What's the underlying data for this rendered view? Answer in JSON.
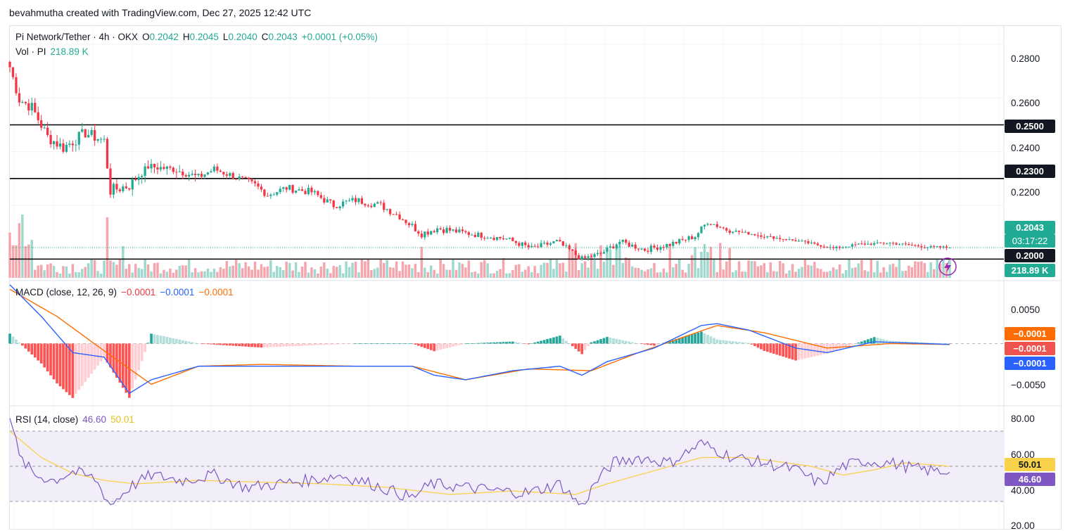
{
  "header": {
    "credit": "bevahmutha created with TradingView.com, Dec 27, 2025 12:42 UTC"
  },
  "legend": {
    "symbol": "Pi Network/Tether · 4h · OKX",
    "o_label": "O",
    "o_value": "0.2042",
    "h_label": "H",
    "h_value": "0.2045",
    "l_label": "L",
    "l_value": "0.2040",
    "c_label": "C",
    "c_value": "0.2043",
    "change": "+0.0001 (+0.05%)",
    "vol_label": "Vol · PI",
    "vol_value": "218.89 K",
    "macd_label": "MACD (close, 12, 26, 9)",
    "macd_hist": "−0.0001",
    "macd_line": "−0.0001",
    "macd_signal": "−0.0001",
    "rsi_label": "RSI (14, close)",
    "rsi_value": "46.60",
    "rsi_ma": "50.01"
  },
  "price_axis": {
    "ticks": [
      "0.2800",
      "0.2600",
      "0.2400",
      "0.2200"
    ],
    "levels": [
      "0.2500",
      "0.2300",
      "0.2000"
    ],
    "last_price": "0.2043",
    "countdown": "03:17:22",
    "volume_badge": "218.89 K"
  },
  "macd_axis": {
    "ticks": [
      "0.0050",
      "−0.0050"
    ],
    "badges": [
      "−0.0001",
      "−0.0001",
      "−0.0001"
    ]
  },
  "rsi_axis": {
    "ticks": [
      "80.00",
      "60.00",
      "40.00",
      "20.00"
    ],
    "badges": [
      "50.01",
      "46.60"
    ]
  },
  "colors": {
    "up": "#22ab94",
    "down": "#f23645",
    "macd": "#2962ff",
    "signal": "#ff6d00",
    "rsi": "#7e57c2",
    "rsi_ma": "#f7d24a",
    "rsi_band": "#ede7f6",
    "level_line": "#000000"
  },
  "chart_data": [
    {
      "type": "candlestick",
      "title": "Pi Network/Tether · 4h · OKX",
      "y_range": [
        0.1925,
        0.2855
      ],
      "horizontal_levels": [
        0.25,
        0.23,
        0.2
      ],
      "last_close": 0.2043,
      "close_path_keypoints": [
        [
          0,
          0.2715
        ],
        [
          3,
          0.2595
        ],
        [
          7,
          0.2565
        ],
        [
          12,
          0.2455
        ],
        [
          17,
          0.2415
        ],
        [
          24,
          0.247
        ],
        [
          30,
          0.244
        ],
        [
          32,
          0.2255
        ],
        [
          38,
          0.2275
        ],
        [
          44,
          0.2345
        ],
        [
          52,
          0.2335
        ],
        [
          60,
          0.2305
        ],
        [
          65,
          0.2335
        ],
        [
          72,
          0.2305
        ],
        [
          78,
          0.2275
        ],
        [
          82,
          0.224
        ],
        [
          88,
          0.2265
        ],
        [
          96,
          0.225
        ],
        [
          103,
          0.22
        ],
        [
          110,
          0.222
        ],
        [
          118,
          0.22
        ],
        [
          124,
          0.216
        ],
        [
          131,
          0.2095
        ],
        [
          136,
          0.2115
        ],
        [
          146,
          0.2095
        ],
        [
          158,
          0.2075
        ],
        [
          166,
          0.204
        ],
        [
          174,
          0.2065
        ],
        [
          182,
          0.2
        ],
        [
          188,
          0.202
        ],
        [
          194,
          0.2065
        ],
        [
          202,
          0.2035
        ],
        [
          210,
          0.2055
        ],
        [
          218,
          0.2085
        ],
        [
          222,
          0.214
        ],
        [
          228,
          0.211
        ],
        [
          240,
          0.2085
        ],
        [
          252,
          0.2065
        ],
        [
          262,
          0.204
        ],
        [
          270,
          0.2055
        ],
        [
          280,
          0.206
        ],
        [
          292,
          0.2045
        ],
        [
          299,
          0.2043
        ]
      ]
    },
    {
      "type": "bar",
      "title": "Vol · PI",
      "last_value": "218.89 K",
      "note": "volume columns coloured by candle direction"
    },
    {
      "type": "line",
      "title": "MACD (close, 12, 26, 9)",
      "y_range": [
        -0.0068,
        0.0068
      ],
      "series": [
        {
          "name": "MACD",
          "keypoints": [
            [
              0,
              0.0065
            ],
            [
              10,
              0.003
            ],
            [
              20,
              -0.001
            ],
            [
              30,
              -0.0015
            ],
            [
              38,
              -0.0055
            ],
            [
              45,
              -0.004
            ],
            [
              60,
              -0.0025
            ],
            [
              75,
              -0.0025
            ],
            [
              90,
              -0.0025
            ],
            [
              110,
              -0.0025
            ],
            [
              128,
              -0.0025
            ],
            [
              135,
              -0.0035
            ],
            [
              145,
              -0.004
            ],
            [
              160,
              -0.003
            ],
            [
              175,
              -0.0025
            ],
            [
              182,
              -0.0035
            ],
            [
              190,
              -0.002
            ],
            [
              205,
              -0.0005
            ],
            [
              220,
              0.002
            ],
            [
              225,
              0.0022
            ],
            [
              235,
              0.0015
            ],
            [
              250,
              -0.0005
            ],
            [
              260,
              -0.001
            ],
            [
              275,
              0.0002
            ],
            [
              299,
              -0.0001
            ]
          ]
        },
        {
          "name": "Signal",
          "keypoints": [
            [
              0,
              0.006
            ],
            [
              15,
              0.003
            ],
            [
              30,
              -0.0008
            ],
            [
              45,
              -0.0045
            ],
            [
              60,
              -0.0025
            ],
            [
              80,
              -0.0023
            ],
            [
              110,
              -0.0025
            ],
            [
              128,
              -0.0025
            ],
            [
              145,
              -0.004
            ],
            [
              165,
              -0.0028
            ],
            [
              185,
              -0.003
            ],
            [
              200,
              -0.001
            ],
            [
              225,
              0.002
            ],
            [
              240,
              0.0012
            ],
            [
              260,
              -0.0005
            ],
            [
              280,
              0.0
            ],
            [
              299,
              -0.0001
            ]
          ]
        }
      ]
    },
    {
      "type": "line",
      "title": "RSI (14, close)",
      "y_range": [
        20,
        80
      ],
      "bands": [
        70,
        50,
        30
      ],
      "series": [
        {
          "name": "RSI",
          "last": 46.6,
          "keypoints": [
            [
              0,
              80
            ],
            [
              3,
              55
            ],
            [
              8,
              45
            ],
            [
              14,
              42
            ],
            [
              20,
              47
            ],
            [
              27,
              43
            ],
            [
              32,
              28
            ],
            [
              38,
              38
            ],
            [
              45,
              45
            ],
            [
              55,
              42
            ],
            [
              65,
              45
            ],
            [
              75,
              38
            ],
            [
              85,
              40
            ],
            [
              95,
              42
            ],
            [
              105,
              45
            ],
            [
              115,
              40
            ],
            [
              128,
              32
            ],
            [
              134,
              40
            ],
            [
              145,
              38
            ],
            [
              155,
              36
            ],
            [
              165,
              35
            ],
            [
              175,
              40
            ],
            [
              182,
              27
            ],
            [
              186,
              40
            ],
            [
              192,
              52
            ],
            [
              200,
              55
            ],
            [
              210,
              52
            ],
            [
              220,
              63
            ],
            [
              230,
              55
            ],
            [
              240,
              52
            ],
            [
              250,
              48
            ],
            [
              258,
              40
            ],
            [
              265,
              50
            ],
            [
              272,
              53
            ],
            [
              280,
              52
            ],
            [
              290,
              48
            ],
            [
              299,
              46.6
            ]
          ]
        },
        {
          "name": "RSI-based MA",
          "last": 50.01,
          "keypoints": [
            [
              0,
              70
            ],
            [
              10,
              55
            ],
            [
              20,
              46
            ],
            [
              30,
              42
            ],
            [
              40,
              40
            ],
            [
              60,
              42
            ],
            [
              80,
              41
            ],
            [
              100,
              40
            ],
            [
              120,
              38
            ],
            [
              140,
              34
            ],
            [
              160,
              36
            ],
            [
              180,
              34
            ],
            [
              190,
              40
            ],
            [
              210,
              50
            ],
            [
              220,
              55
            ],
            [
              235,
              55
            ],
            [
              255,
              50
            ],
            [
              265,
              45
            ],
            [
              275,
              48
            ],
            [
              285,
              52
            ],
            [
              299,
              50
            ]
          ]
        }
      ]
    }
  ]
}
